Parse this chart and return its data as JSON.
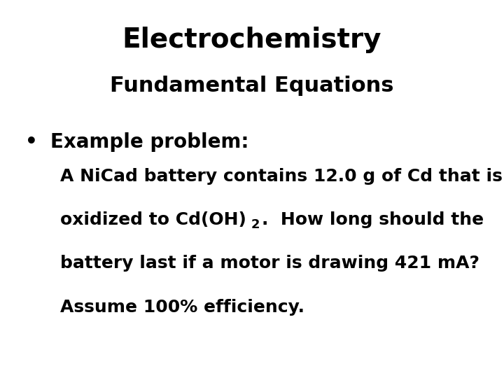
{
  "title_line1": "Electrochemistry",
  "title_line2": "Fundamental Equations",
  "bullet_header": "Example problem:",
  "body_line1": "A NiCad battery contains 12.0 g of Cd that is",
  "body_line2_part1": "oxidized to Cd(OH)",
  "body_line2_sub": "2",
  "body_line2_part2": ".  How long should the",
  "body_line3": "battery last if a motor is drawing 421 mA?",
  "body_line4": "Assume 100% efficiency.",
  "bg_color": "#ffffff",
  "text_color": "#000000",
  "title_fontsize": 28,
  "subtitle_fontsize": 22,
  "bullet_fontsize": 20,
  "body_fontsize": 18,
  "font_family": "DejaVu Sans"
}
